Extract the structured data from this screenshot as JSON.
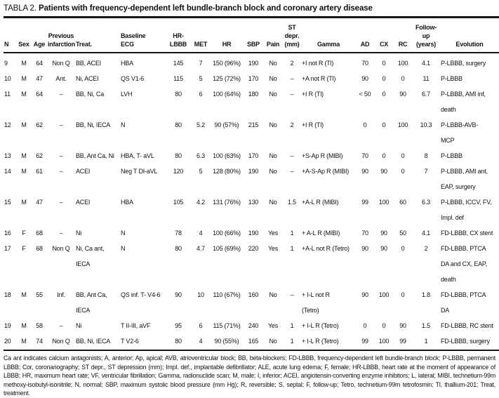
{
  "title": {
    "prefix": "TABLA 2.",
    "text": "Patients with frequency-dependent left bundle-branch block and coronary artery disease"
  },
  "table": {
    "columns": [
      {
        "top": "",
        "label": "N"
      },
      {
        "top": "",
        "label": "Sex"
      },
      {
        "top": "",
        "label": "Age"
      },
      {
        "top": "Previous",
        "label": "infarction"
      },
      {
        "top": "",
        "label": "Treat."
      },
      {
        "top": "Baseline",
        "label": "ECG"
      },
      {
        "top": "",
        "label": "HR-LBBB"
      },
      {
        "top": "",
        "label": "MET"
      },
      {
        "top": "",
        "label": "HR"
      },
      {
        "top": "",
        "label": "SBP"
      },
      {
        "top": "",
        "label": "Pain"
      },
      {
        "top": "ST depr.",
        "label": "(mm)"
      },
      {
        "top": "",
        "label": "Gamma"
      },
      {
        "top": "",
        "label": "AD"
      },
      {
        "top": "",
        "label": "CX"
      },
      {
        "top": "",
        "label": "RC"
      },
      {
        "top": "Follow-up",
        "label": "(years)"
      },
      {
        "top": "",
        "label": "Evolution"
      }
    ],
    "rows": [
      {
        "cells": [
          "9",
          "M",
          "64",
          "Non Q",
          "BB, ACEI",
          "HBA",
          "145",
          "7",
          "150 (96%)",
          "190",
          "No",
          "2",
          "+I not R (Tl)",
          "70",
          "0",
          "100",
          "4.1",
          "P-LBBB, surgery"
        ]
      },
      {
        "cells": [
          "10",
          "M",
          "47",
          "Ant.",
          "Ni, ACEI",
          "QS V1-6",
          "115",
          "5",
          "125 (72%)",
          "170",
          "No",
          "–",
          "+A not R (Tl)",
          "90",
          "0",
          "0",
          "11",
          "P-LBBB"
        ]
      },
      {
        "cells": [
          "11",
          "M",
          "64",
          "–",
          "BB, Ni, Ca",
          "LVH",
          "80",
          "6",
          "100 (64%)",
          "180",
          "No",
          "–",
          "+I R (Tl)",
          "< 50",
          "0",
          "90",
          "6.7",
          "P-LBBB, AMI inf,\ndeath"
        ]
      },
      {
        "cells": [
          "12",
          "M",
          "62",
          "–",
          "BB, Ni, IECA",
          "N",
          "80",
          "5.2",
          "90 (57%)",
          "215",
          "No",
          "2",
          "+I R (Tl)",
          "0",
          "0",
          "100",
          "10.3",
          "P-LBBB-AVB-\nMCP"
        ]
      },
      {
        "cells": [
          "13",
          "M",
          "62",
          "–",
          "BB, Ant Ca, Ni",
          "HBA, T- aVL",
          "80",
          "6.3",
          "100 (63%)",
          "170",
          "No",
          "–",
          "+S-Ap R (MIBI)",
          "70",
          "0",
          "0",
          "8",
          "P-LBBB"
        ]
      },
      {
        "cells": [
          "14",
          "M",
          "61",
          "–",
          "ACEI",
          "Neg T DI-aVL",
          "120",
          "5",
          "128 (80%)",
          "190",
          "No",
          "–",
          "+A-S-Ap R (MIBI)",
          "90",
          "90",
          "0",
          "7",
          "P-LBBB, AMI ant,\nEAP, surgery"
        ]
      },
      {
        "cells": [
          "15",
          "M",
          "47",
          "–",
          "ACEI",
          "HBA",
          "105",
          "4.2",
          "131 (76%)",
          "130",
          "No",
          "1.5",
          "+A-L R (MIBI)",
          "99",
          "100",
          "60",
          "6.3",
          "P-LBBB, ICCV, FV,\nImpl. def"
        ]
      },
      {
        "cells": [
          "16",
          "F",
          "68",
          "–",
          "Ni",
          "N",
          "78",
          "4",
          "100 (66%)",
          "190",
          "Yes",
          "1",
          "+ A-L R (MIBI)",
          "70",
          "90",
          "50",
          "4.1",
          "FD-LBBB, CX stent"
        ]
      },
      {
        "cells": [
          "17",
          "F",
          "68",
          "Non Q",
          "Ni, Ca ant, IECA",
          "N",
          "80",
          "4.7",
          "105 (69%)",
          "220",
          "Yes",
          "1",
          "+A-L not R (Tetro)",
          "90",
          "90",
          "0",
          "2",
          "FD-LBBB, PTCA\nDA and CX, EAP,\ndeath"
        ]
      },
      {
        "cells": [
          "18",
          "M",
          "55",
          "Inf.",
          "BB, Ant Ca,\nIECA",
          "QS inf. T- V4-6",
          "90",
          "10",
          "110 (67%)",
          "160",
          "No",
          "–",
          "+ I-L not R\n(Tetro)",
          "90",
          "100",
          "0",
          "1.8",
          "FD-LBBB, PTCA\nDA"
        ]
      },
      {
        "cells": [
          "19",
          "M",
          "58",
          "–",
          "Ni",
          "T II-III, aVF",
          "95",
          "6",
          "115 (71%)",
          "240",
          "Yes",
          "1",
          "+ I-L R (Tetro)",
          "0",
          "0",
          "90",
          "1.5",
          "FD-LBBB, RC stent"
        ]
      },
      {
        "cells": [
          "20",
          "M",
          "74",
          "Non Q",
          "BB, Ni, IECA",
          "T V2-6",
          "80",
          "4",
          "90 (55%)",
          "165",
          "No",
          "1",
          "+ I-L R (Tetro)",
          "99",
          "100",
          "99",
          "1",
          "FD-LBBB, surgery"
        ]
      }
    ]
  },
  "footnote": "Ca ant indicates calcium antagonists; A, anterior; Ap, apical; AVB, atrioventricular block; BB, beta-blockers; FD-LBBB, frequency-dependent left bundle-branch block; P-LBBB, permanent LBBB; Cor, coronariography; ST depr., ST depression (mm); Impl. def., implantable defibrillator; ALE, acute lung edema; F, female; HR-LBBB, heart rate at the moment of appearance of LBBB; HR, maximum heart rate; VF, ventricular fibrillation; Gamma, radionuclide scan; M, male; I, inferior; ACEI, angiotensin-converting enzyme inhibitors; L, lateral; MIBI, technetium-99m methoxy-isobutyl-isonitrile; N, normal; SBP, maximum systolic blood pressure (mm Hg); R, reversible; S, septal; F, follow-up; Tetro, technetium-99m tetrofosmin; Tl, thallium-201; Treat, treatment."
}
